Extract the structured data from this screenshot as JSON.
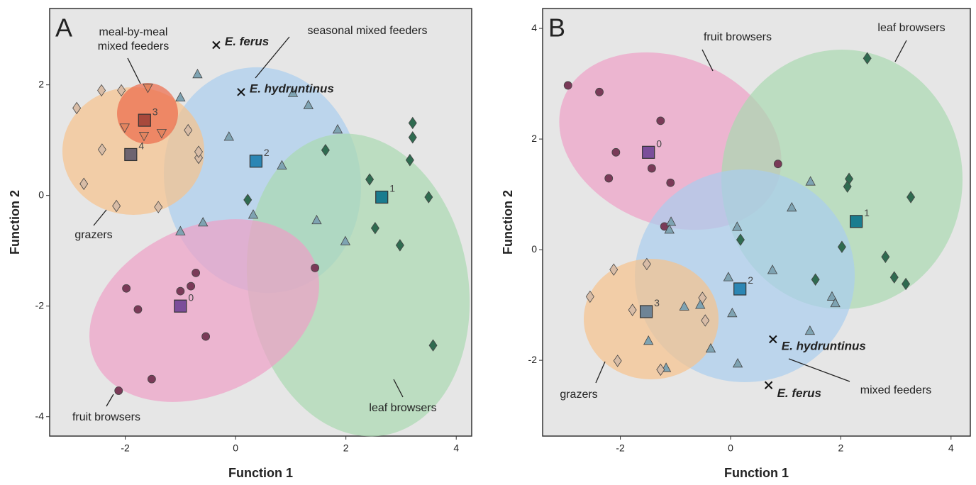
{
  "chart_data": [
    {
      "type": "scatter",
      "panel": "A",
      "xlabel": "Function 1",
      "ylabel": "Function 2",
      "xlim": [
        -3.37,
        4.28
      ],
      "ylim": [
        -4.35,
        3.38
      ],
      "xticks": [
        -2,
        0,
        2,
        4
      ],
      "yticks": [
        -4,
        -2,
        0,
        2
      ],
      "series": [
        {
          "name": "grazers",
          "marker": "diamond",
          "color": "#d8bca6",
          "x": [
            -2.88,
            -2.43,
            -2.07,
            -2.42,
            -2.75,
            -2.16,
            -1.4,
            -0.86,
            -0.67,
            -0.67
          ],
          "y": [
            1.58,
            1.9,
            1.9,
            0.83,
            0.21,
            -0.19,
            -0.21,
            1.18,
            0.68,
            0.79
          ]
        },
        {
          "name": "meal-by-meal mixed feeders",
          "marker": "triangle-down",
          "color": "#e3845f",
          "x": [
            -1.59,
            -2.01,
            -1.66,
            -1.34
          ],
          "y": [
            1.95,
            1.23,
            1.08,
            1.13
          ]
        },
        {
          "name": "seasonal mixed feeders",
          "marker": "triangle",
          "color": "#7ea3b2",
          "x": [
            -0.69,
            -1.0,
            -0.12,
            1.04,
            1.32,
            1.85,
            0.84,
            0.32,
            1.47,
            1.99,
            -0.59,
            -1.0
          ],
          "y": [
            2.19,
            1.77,
            1.06,
            1.85,
            1.63,
            1.19,
            0.54,
            -0.35,
            -0.45,
            -0.83,
            -0.49,
            -0.65
          ]
        },
        {
          "name": "leaf browsers",
          "marker": "diamond",
          "color": "#2f6b50",
          "x": [
            0.22,
            1.63,
            2.43,
            3.21,
            3.21,
            3.16,
            3.5,
            2.53,
            2.98,
            3.58
          ],
          "y": [
            -0.08,
            0.82,
            0.29,
            1.31,
            1.05,
            0.64,
            -0.03,
            -0.59,
            -0.9,
            -2.71
          ]
        },
        {
          "name": "fruit browsers",
          "marker": "circle",
          "color": "#7a3a58",
          "x": [
            1.44,
            -0.72,
            -0.81,
            -1.0,
            -1.98,
            -1.77,
            -0.54,
            -1.52,
            -2.12
          ],
          "y": [
            -1.31,
            -1.4,
            -1.64,
            -1.73,
            -1.68,
            -2.06,
            -2.55,
            -3.32,
            -3.53
          ]
        }
      ],
      "centroids": {
        "x": [
          -1.0,
          2.65,
          0.37,
          -1.65,
          -1.9
        ],
        "y": [
          -2.0,
          -0.03,
          0.62,
          1.36,
          0.74
        ],
        "labels": [
          "0",
          "1",
          "2",
          "3",
          "4"
        ],
        "colors": [
          "#7b4e9a",
          "#1a7c8f",
          "#2b86b4",
          "#a8493c",
          "#6e6470"
        ]
      },
      "points": [
        {
          "label": "E. ferus",
          "x": -0.35,
          "y": 2.72
        },
        {
          "label": "E. hydruntinus",
          "x": 0.1,
          "y": 1.87
        }
      ]
    },
    {
      "type": "scatter",
      "panel": "B",
      "xlabel": "Function 1",
      "ylabel": "Function 2",
      "xlim": [
        -3.41,
        4.35
      ],
      "ylim": [
        -3.37,
        4.36
      ],
      "xticks": [
        -2,
        0,
        2,
        4
      ],
      "yticks": [
        -2,
        0,
        2,
        4
      ],
      "series": [
        {
          "name": "fruit browsers",
          "marker": "circle",
          "color": "#7a3a58",
          "x": [
            -2.95,
            -2.38,
            -1.27,
            -2.08,
            -1.43,
            -2.21,
            -1.09,
            0.86,
            -1.2
          ],
          "y": [
            2.97,
            2.85,
            2.33,
            1.76,
            1.47,
            1.29,
            1.21,
            1.55,
            0.42
          ]
        },
        {
          "name": "leaf browsers",
          "marker": "diamond",
          "color": "#2f6b50",
          "x": [
            2.48,
            2.15,
            2.12,
            3.27,
            2.02,
            2.81,
            2.97,
            3.18,
            1.54,
            0.18
          ],
          "y": [
            3.46,
            1.28,
            1.14,
            0.95,
            0.05,
            -0.13,
            -0.5,
            -0.62,
            -0.54,
            0.18
          ]
        },
        {
          "name": "mixed feeders",
          "marker": "triangle",
          "color": "#7ea3b2",
          "x": [
            1.45,
            1.11,
            -1.08,
            -1.11,
            0.12,
            0.76,
            -0.04,
            0.03,
            1.84,
            1.9,
            -0.84,
            -0.55,
            -1.49,
            -0.36,
            -1.17,
            0.13,
            1.44
          ],
          "y": [
            1.23,
            0.76,
            0.5,
            0.36,
            0.41,
            -0.37,
            -0.5,
            -1.15,
            -0.85,
            -0.97,
            -1.03,
            -1.0,
            -1.65,
            -1.79,
            -2.14,
            -2.06,
            -1.47
          ]
        },
        {
          "name": "grazers",
          "marker": "diamond",
          "color": "#d8bca6",
          "x": [
            -2.12,
            -1.52,
            -2.55,
            -1.78,
            -0.51,
            -0.46,
            -2.05,
            -1.27
          ],
          "y": [
            -0.36,
            -0.26,
            -0.85,
            -1.09,
            -0.87,
            -1.28,
            -2.01,
            -2.17
          ]
        }
      ],
      "centroids": {
        "x": [
          -1.49,
          2.28,
          0.17,
          -1.53
        ],
        "y": [
          1.76,
          0.51,
          -0.71,
          -1.12
        ],
        "labels": [
          "0",
          "1",
          "2",
          "3"
        ],
        "colors": [
          "#7b4e9a",
          "#1a7c8f",
          "#2b86b4",
          "#6e8496"
        ]
      },
      "points": [
        {
          "label": "E. hydruntinus",
          "x": 0.77,
          "y": -1.62
        },
        {
          "label": "E. ferus",
          "x": 0.69,
          "y": -2.45
        }
      ]
    }
  ]
}
